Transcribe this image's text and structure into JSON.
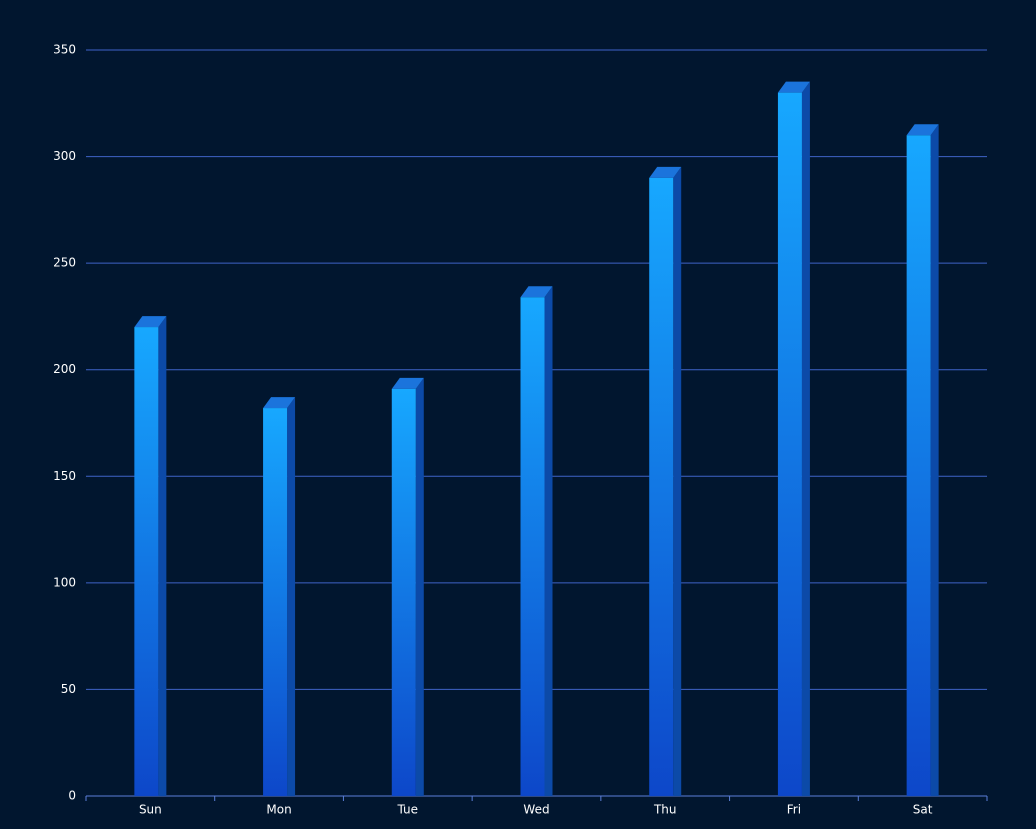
{
  "chart_data": {
    "type": "bar3d",
    "categories": [
      "Sun",
      "Mon",
      "Tue",
      "Wed",
      "Thu",
      "Fri",
      "Sat"
    ],
    "values": [
      220,
      182,
      191,
      234,
      290,
      330,
      310
    ],
    "colors": {
      "front_top": "#17a8ff",
      "front_bottom": "#0d47c9",
      "side": "#0c4aa8",
      "top": "#1b74dc"
    },
    "ylim": [
      0,
      350
    ],
    "yticks": [
      0,
      50,
      100,
      150,
      200,
      250,
      300,
      350
    ],
    "grid": true
  }
}
